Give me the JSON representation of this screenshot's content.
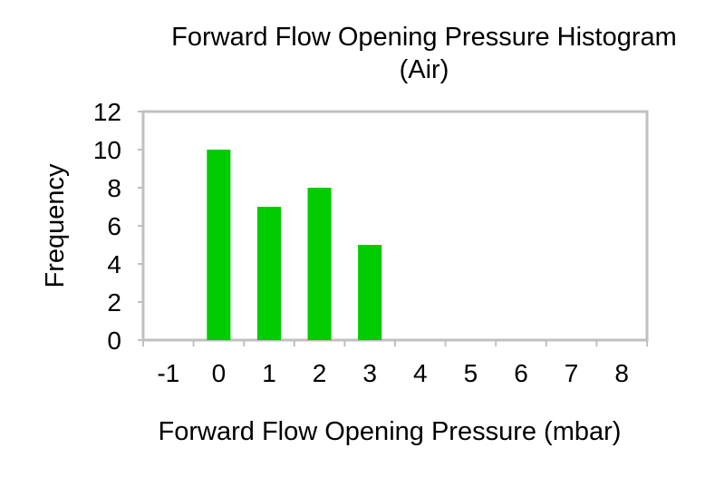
{
  "chart_data": {
    "type": "bar",
    "title": "Forward Flow Opening Pressure Histogram",
    "subtitle": "(Air)",
    "xlabel": "Forward Flow Opening Pressure (mbar)",
    "ylabel": "Frequency",
    "categories": [
      "-1",
      "0",
      "1",
      "2",
      "3",
      "4",
      "5",
      "6",
      "7",
      "8"
    ],
    "values": [
      0,
      10,
      7,
      8,
      5,
      0,
      0,
      0,
      0,
      0
    ],
    "ylim": [
      0,
      12
    ],
    "yticks": [
      "0",
      "2",
      "4",
      "6",
      "8",
      "10",
      "12"
    ],
    "grid": false,
    "legend": "none",
    "bar_color": "#00cc00",
    "frame_color": "#c0c0c0"
  }
}
